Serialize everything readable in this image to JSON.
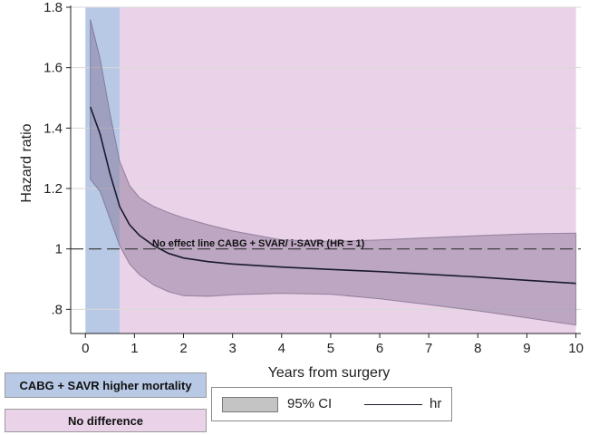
{
  "chart_data": {
    "type": "line",
    "title": "",
    "xlabel": "Years from surgery",
    "ylabel": "Hazard ratio",
    "xlim": [
      -0.3,
      10.1
    ],
    "ylim": [
      0.72,
      1.8
    ],
    "xticks": [
      0,
      1,
      2,
      3,
      4,
      5,
      6,
      7,
      8,
      9,
      10
    ],
    "xtick_labels": [
      "0",
      "1",
      "2",
      "3",
      "4",
      "5",
      "6",
      "7",
      "8",
      "9",
      "10"
    ],
    "yticks": [
      0.8,
      1.0,
      1.2,
      1.4,
      1.6,
      1.8
    ],
    "ytick_labels": [
      ".8",
      "1",
      "1.2",
      "1.4",
      "1.6",
      "1.8"
    ],
    "grid": "horizontal",
    "reference_line": {
      "y": 1,
      "style": "dashed",
      "label": "No effect line CABG + SVAR/ i-SAVR  (HR = 1)"
    },
    "series": [
      {
        "name": "hr",
        "x": [
          0.1,
          0.3,
          0.5,
          0.7,
          0.9,
          1.1,
          1.4,
          1.7,
          2.0,
          2.5,
          3.0,
          4.0,
          5.0,
          6.0,
          7.0,
          8.0,
          9.0,
          10.0
        ],
        "y": [
          1.47,
          1.38,
          1.25,
          1.14,
          1.08,
          1.045,
          1.01,
          0.985,
          0.97,
          0.958,
          0.95,
          0.94,
          0.932,
          0.925,
          0.916,
          0.907,
          0.896,
          0.886
        ]
      }
    ],
    "ci_band": {
      "name": "95% CI",
      "x": [
        0.1,
        0.3,
        0.5,
        0.7,
        0.9,
        1.1,
        1.4,
        1.7,
        2.0,
        2.5,
        3.0,
        4.0,
        5.0,
        6.0,
        7.0,
        8.0,
        9.0,
        10.0
      ],
      "lower": [
        1.23,
        1.19,
        1.1,
        1.01,
        0.95,
        0.915,
        0.88,
        0.858,
        0.845,
        0.843,
        0.848,
        0.853,
        0.85,
        0.835,
        0.815,
        0.795,
        0.772,
        0.748
      ],
      "upper": [
        1.76,
        1.63,
        1.45,
        1.29,
        1.21,
        1.17,
        1.14,
        1.12,
        1.103,
        1.08,
        1.06,
        1.03,
        1.025,
        1.03,
        1.037,
        1.044,
        1.05,
        1.052
      ]
    },
    "regions": [
      {
        "label": "CABG + SAVR  higher mortality",
        "x_range": [
          0,
          0.7
        ],
        "color": "#b8c9e6"
      },
      {
        "label": "No difference",
        "x_range": [
          0.7,
          10
        ],
        "color": "#ead2e9"
      }
    ],
    "legend": {
      "placement": "bottom",
      "entries": [
        "95% CI",
        "hr"
      ]
    }
  },
  "colors": {
    "line": "#1a1a2e",
    "ci_fill": "#7b6a8c",
    "grid": "#d8d8d8",
    "axis": "#222222"
  }
}
